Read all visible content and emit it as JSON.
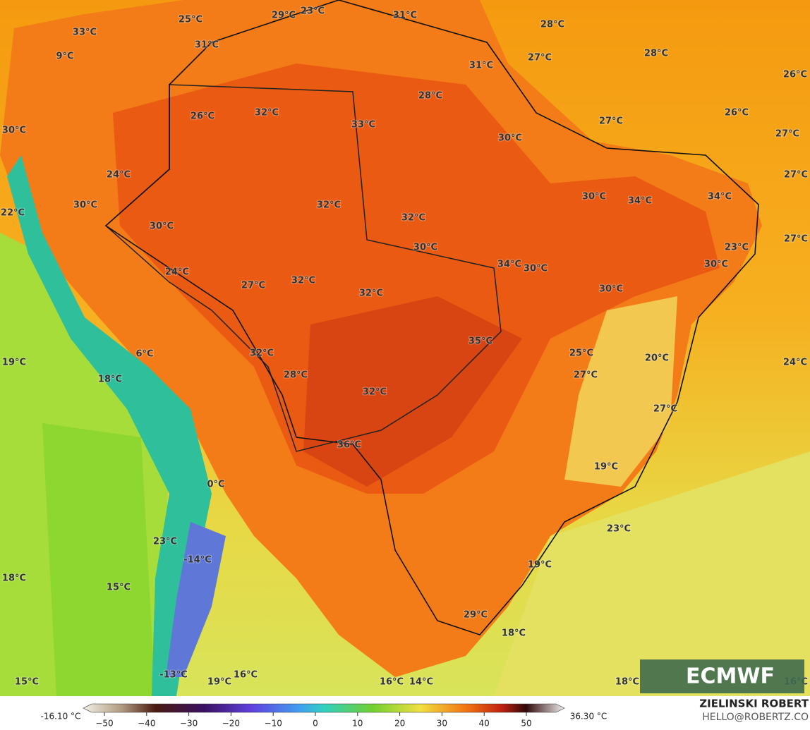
{
  "labels": [
    "25°C",
    "29°C",
    "23°C",
    "31°C",
    "28°C",
    "33°C",
    "31°C",
    "9°C",
    "27°C",
    "28°C",
    "31°C",
    "26°C",
    "28°C",
    "32°C",
    "26°C",
    "26°C",
    "27°C",
    "33°C",
    "30°C",
    "30°C",
    "27°C",
    "24°C",
    "27°C",
    "34°C",
    "30°C",
    "34°C",
    "30°C",
    "32°C",
    "22°C",
    "32°C",
    "30°C",
    "27°C",
    "30°C",
    "23°C",
    "34°C",
    "30°C",
    "30°C",
    "24°C",
    "32°C",
    "27°C",
    "30°C",
    "32°C",
    "35°C",
    "6°C",
    "32°C",
    "25°C",
    "20°C",
    "19°C",
    "24°C",
    "27°C",
    "28°C",
    "18°C",
    "32°C",
    "27°C",
    "36°C",
    "19°C",
    "0°C",
    "23°C",
    "23°C",
    "-14°C",
    "19°C",
    "18°C",
    "15°C",
    "29°C",
    "18°C",
    "-13°C",
    "16°C",
    "19°C",
    "16°C",
    "14°C",
    "15°C",
    "18°C",
    "16°C"
  ],
  "colorbar": {
    "min_label": "-16.10 °C",
    "max_label": "36.30 °C",
    "tick_labels": [
      "−50",
      "−40",
      "−30",
      "−20",
      "−10",
      "0",
      "10",
      "20",
      "30",
      "40",
      "50"
    ]
  },
  "logo": "ECMWF",
  "credit": {
    "name": "ZIELINSKI ROBERT",
    "email": "HELLO@ROBERTZ.CO"
  }
}
